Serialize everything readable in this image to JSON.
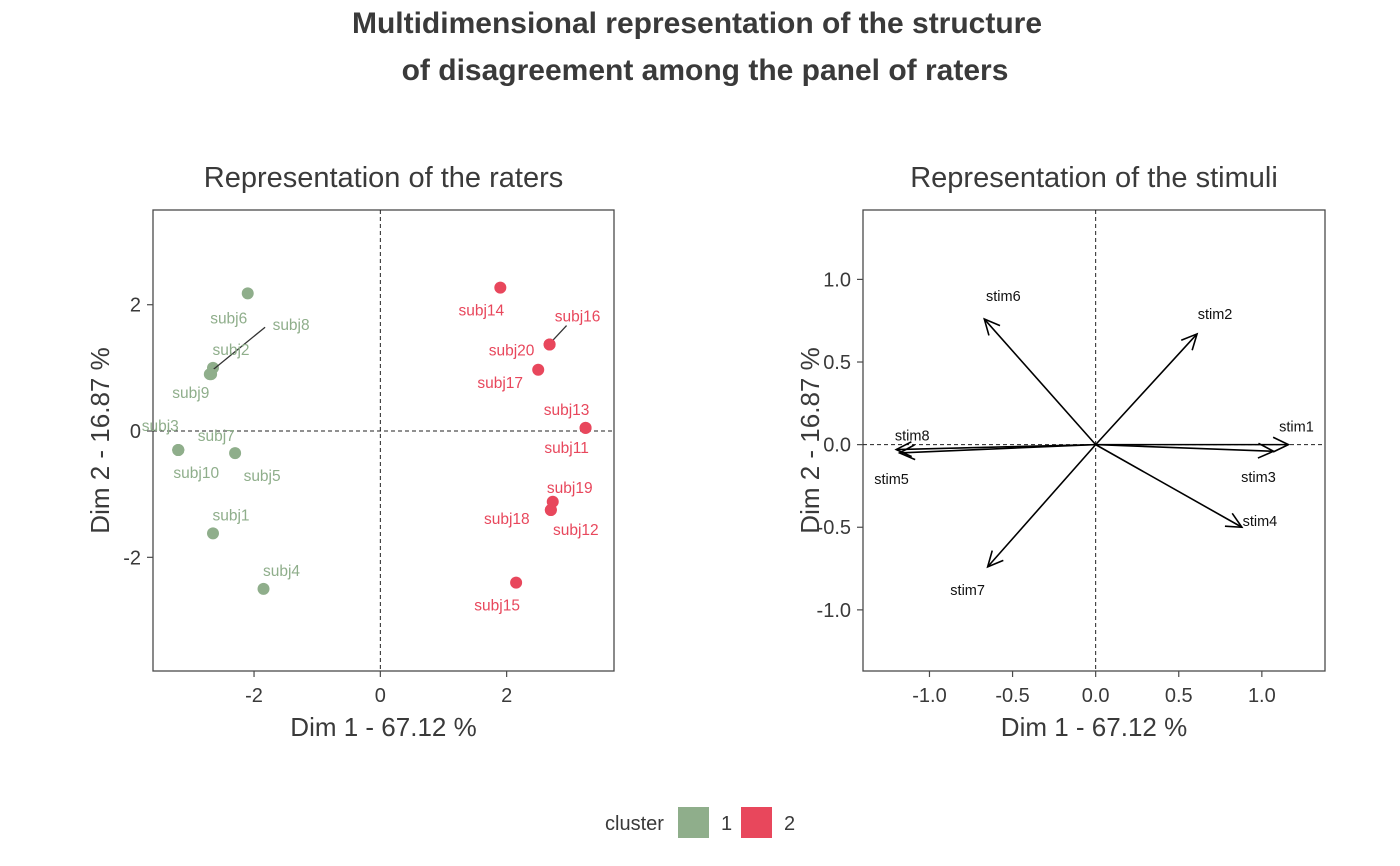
{
  "figure": {
    "title_line1": "Multidimensional representation of the structure",
    "title_line2": "of disagreement among the panel of raters"
  },
  "legend": {
    "title": "cluster",
    "items": [
      {
        "label": "1",
        "color": "#8fae8b"
      },
      {
        "label": "2",
        "color": "#e8475c"
      }
    ]
  },
  "chart_data": [
    {
      "type": "scatter",
      "title": "Representation of the raters",
      "xlabel": "Dim 1 - 67.12 %",
      "ylabel": "Dim 2 - 16.87 %",
      "xlim": [
        -3.6,
        3.7
      ],
      "ylim": [
        -3.8,
        3.5
      ],
      "xticks": [
        -2,
        0,
        2
      ],
      "xtick_labels": [
        "-2",
        "0",
        "2"
      ],
      "yticks": [
        -2,
        0,
        2
      ],
      "ytick_labels": [
        "-2",
        "0",
        "2"
      ],
      "reference_lines": {
        "x": 0,
        "y": 0,
        "style": "dashed"
      },
      "legend_position": "bottom",
      "points": [
        {
          "label": "subj1",
          "x": -2.65,
          "y": -1.62,
          "cluster": "1"
        },
        {
          "label": "subj2",
          "x": -2.65,
          "y": 1.0,
          "cluster": "1"
        },
        {
          "label": "subj3",
          "x": -3.2,
          "y": -0.3,
          "cluster": "1"
        },
        {
          "label": "subj4",
          "x": -1.85,
          "y": -2.5,
          "cluster": "1"
        },
        {
          "label": "subj5",
          "x": -2.3,
          "y": -0.35,
          "cluster": "1"
        },
        {
          "label": "subj6",
          "x": -2.1,
          "y": 2.18,
          "cluster": "1"
        },
        {
          "label": "subj7",
          "x": -3.2,
          "y": -0.3,
          "cluster": "1"
        },
        {
          "label": "subj8",
          "x": -2.68,
          "y": 0.9,
          "cluster": "1"
        },
        {
          "label": "subj9",
          "x": -2.7,
          "y": 0.9,
          "cluster": "1"
        },
        {
          "label": "subj10",
          "x": -3.2,
          "y": -0.3,
          "cluster": "1"
        },
        {
          "label": "subj11",
          "x": 3.25,
          "y": 0.05,
          "cluster": "2"
        },
        {
          "label": "subj12",
          "x": 2.7,
          "y": -1.25,
          "cluster": "2"
        },
        {
          "label": "subj13",
          "x": 3.25,
          "y": 0.05,
          "cluster": "2"
        },
        {
          "label": "subj14",
          "x": 1.9,
          "y": 2.27,
          "cluster": "2"
        },
        {
          "label": "subj15",
          "x": 2.15,
          "y": -2.4,
          "cluster": "2"
        },
        {
          "label": "subj16",
          "x": 2.68,
          "y": 1.37,
          "cluster": "2"
        },
        {
          "label": "subj17",
          "x": 2.5,
          "y": 0.97,
          "cluster": "2"
        },
        {
          "label": "subj18",
          "x": 2.7,
          "y": -1.25,
          "cluster": "2"
        },
        {
          "label": "subj19",
          "x": 2.73,
          "y": -1.12,
          "cluster": "2"
        },
        {
          "label": "subj20",
          "x": 2.68,
          "y": 1.37,
          "cluster": "2"
        }
      ]
    },
    {
      "type": "arrows",
      "title": "Representation of the stimuli",
      "xlabel": "Dim 1 - 67.12 %",
      "ylabel": "Dim 2 - 16.87 %",
      "xlim": [
        -1.4,
        1.38
      ],
      "ylim": [
        -1.37,
        1.42
      ],
      "xticks": [
        -1.0,
        -0.5,
        0.0,
        0.5,
        1.0
      ],
      "xtick_labels": [
        "-1.0",
        "-0.5",
        "0.0",
        "0.5",
        "1.0"
      ],
      "yticks": [
        -1.0,
        -0.5,
        0.0,
        0.5,
        1.0
      ],
      "ytick_labels": [
        "-1.0",
        "-0.5",
        "0.0",
        "0.5",
        "1.0"
      ],
      "reference_lines": {
        "x": 0,
        "y": 0,
        "style": "dashed"
      },
      "vectors": [
        {
          "label": "stim1",
          "x": 1.16,
          "y": 0.0
        },
        {
          "label": "stim2",
          "x": 0.61,
          "y": 0.67
        },
        {
          "label": "stim3",
          "x": 1.07,
          "y": -0.04
        },
        {
          "label": "stim4",
          "x": 0.88,
          "y": -0.5
        },
        {
          "label": "stim5",
          "x": -1.18,
          "y": -0.05
        },
        {
          "label": "stim6",
          "x": -0.67,
          "y": 0.76
        },
        {
          "label": "stim7",
          "x": -0.65,
          "y": -0.74
        },
        {
          "label": "stim8",
          "x": -1.2,
          "y": -0.03
        }
      ]
    }
  ]
}
